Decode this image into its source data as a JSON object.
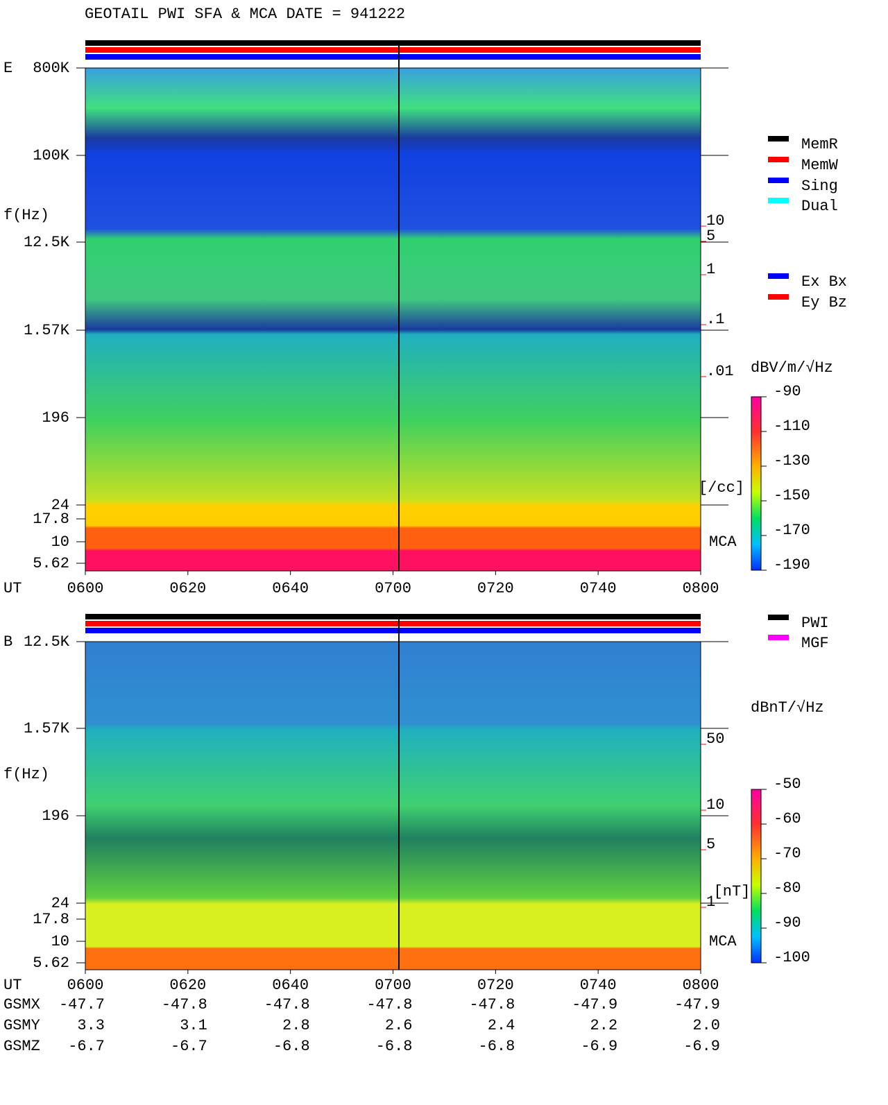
{
  "title": "GEOTAIL  PWI SFA & MCA   DATE = 941222",
  "time_label": "UT",
  "times": [
    "0600",
    "0620",
    "0640",
    "0700",
    "0720",
    "0740",
    "0800"
  ],
  "panels": [
    {
      "label": "E",
      "y_label": "f(Hz)",
      "freq_ticks": [
        "800K",
        "100K",
        "12.5K",
        "1.57K",
        "196",
        "24",
        "17.8",
        "10",
        "5.62"
      ],
      "right_ticks": [
        "10",
        "5",
        "1",
        ".1",
        ".01"
      ],
      "right_unit": "[/cc]",
      "mca": "MCA",
      "unit": "dBV/m/√Hz",
      "colorbar_ticks": [
        -90,
        -110,
        -130,
        -150,
        -170,
        -190
      ]
    },
    {
      "label": "B",
      "y_label": "f(Hz)",
      "freq_ticks": [
        "12.5K",
        "1.57K",
        "196",
        "24",
        "17.8",
        "10",
        "5.62"
      ],
      "right_ticks": [
        "50",
        "10",
        "5",
        "1"
      ],
      "right_unit": "[nT]",
      "mca": "MCA",
      "unit": "dBnT/√Hz",
      "colorbar_ticks": [
        -50,
        -60,
        -70,
        -80,
        -90,
        -100
      ]
    }
  ],
  "status_legend": [
    {
      "label": "MemR",
      "color": "#000000"
    },
    {
      "label": "MemW",
      "color": "#ff0000"
    },
    {
      "label": "Sing",
      "color": "#0000ff"
    },
    {
      "label": "Dual",
      "color": "#00ffff"
    }
  ],
  "component_legend": [
    {
      "label": "Ex Bx",
      "color": "#0000ff"
    },
    {
      "label": "Ey Bz",
      "color": "#ff0000"
    }
  ],
  "source_legend": [
    {
      "label": "PWI",
      "color": "#000000"
    },
    {
      "label": "MGF",
      "color": "#ff00ff"
    }
  ],
  "orbit": [
    {
      "label": "GSMX",
      "values": [
        "-47.7",
        "-47.8",
        "-47.8",
        "-47.8",
        "-47.8",
        "-47.9",
        "-47.9"
      ]
    },
    {
      "label": "GSMY",
      "values": [
        "3.3",
        "3.1",
        "2.8",
        "2.6",
        "2.4",
        "2.2",
        "2.0"
      ]
    },
    {
      "label": "GSMZ",
      "values": [
        "-6.7",
        "-6.7",
        "-6.8",
        "-6.8",
        "-6.8",
        "-6.9",
        "-6.9"
      ]
    }
  ]
}
